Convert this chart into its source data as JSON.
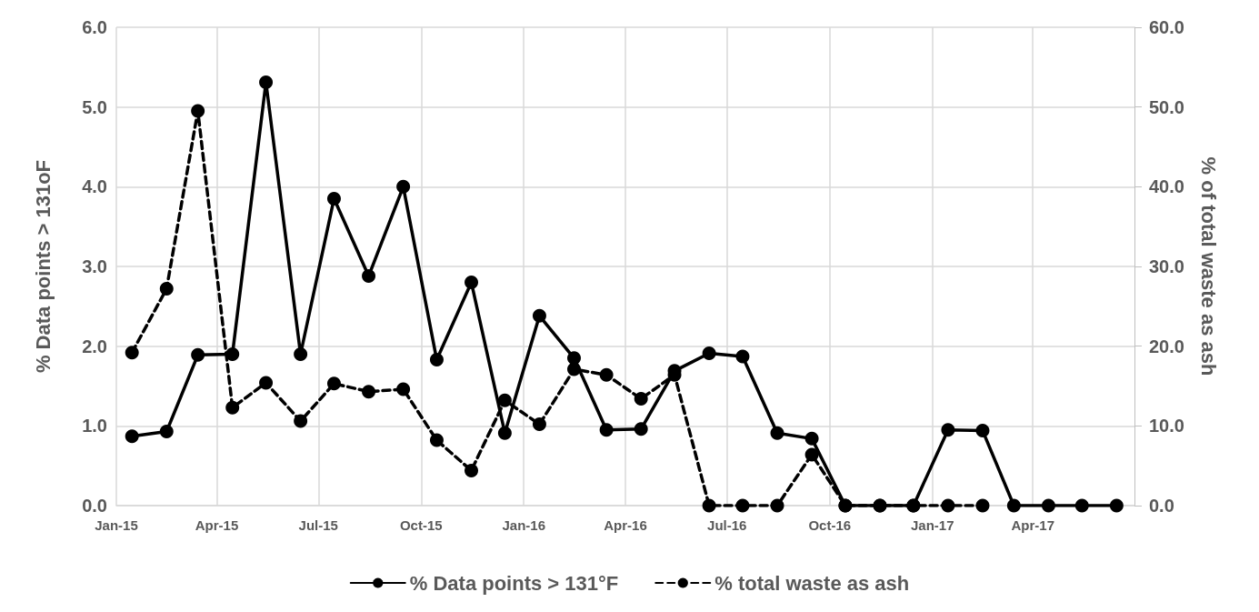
{
  "chart_data": {
    "type": "line",
    "ylabel": "% Data points > 131oF",
    "y2label": "% of total waste as ash",
    "x": [
      "2015-01-15",
      "2015-02-15",
      "2015-03-15",
      "2015-04-15",
      "2015-05-15",
      "2015-06-15",
      "2015-07-15",
      "2015-08-15",
      "2015-09-15",
      "2015-10-15",
      "2015-11-15",
      "2015-12-15",
      "2016-01-15",
      "2016-02-15",
      "2016-03-15",
      "2016-04-15",
      "2016-05-15",
      "2016-06-15",
      "2016-07-15",
      "2016-08-15",
      "2016-09-15",
      "2016-10-15",
      "2016-11-15",
      "2016-12-15",
      "2017-01-15",
      "2017-02-15",
      "2017-03-15",
      "2017-04-15",
      "2017-05-15",
      "2017-06-15"
    ],
    "series": [
      {
        "name": "% Data points > 131°F",
        "color": "#000000",
        "line_style": "solid",
        "values": [
          0.87,
          0.93,
          1.89,
          1.9,
          5.31,
          1.9,
          3.85,
          2.88,
          4.0,
          1.83,
          2.8,
          0.91,
          2.38,
          1.85,
          0.95,
          0.96,
          1.69,
          1.91,
          1.87,
          0.91,
          0.84,
          0,
          0,
          0,
          0.95,
          0.94,
          0,
          0,
          0,
          0
        ]
      },
      {
        "name": "% total waste as ash",
        "color": "#000000",
        "line_style": "dashed",
        "axis": "y2",
        "values": [
          19.2,
          27.2,
          49.5,
          12.3,
          15.4,
          10.6,
          15.3,
          14.3,
          14.6,
          8.2,
          4.4,
          13.2,
          10.2,
          17.1,
          16.4,
          13.4,
          16.4,
          0,
          0,
          0,
          6.4,
          0,
          0,
          0,
          0,
          0,
          null,
          null,
          null,
          null
        ]
      }
    ],
    "xlim": [
      "2015-01-01",
      "2017-07-01"
    ],
    "xticks": [
      {
        "value": "2015-01-01",
        "label": "Jan-15"
      },
      {
        "value": "2015-04-01",
        "label": "Apr-15"
      },
      {
        "value": "2015-07-01",
        "label": "Jul-15"
      },
      {
        "value": "2015-10-01",
        "label": "Oct-15"
      },
      {
        "value": "2016-01-01",
        "label": "Jan-16"
      },
      {
        "value": "2016-04-01",
        "label": "Apr-16"
      },
      {
        "value": "2016-07-01",
        "label": "Jul-16"
      },
      {
        "value": "2016-10-01",
        "label": "Oct-16"
      },
      {
        "value": "2017-01-01",
        "label": "Jan-17"
      },
      {
        "value": "2017-04-01",
        "label": "Apr-17"
      }
    ],
    "ylim": [
      0,
      6
    ],
    "yticks": [
      {
        "value": 0,
        "label": "0.0"
      },
      {
        "value": 1,
        "label": "1.0"
      },
      {
        "value": 2,
        "label": "2.0"
      },
      {
        "value": 3,
        "label": "3.0"
      },
      {
        "value": 4,
        "label": "4.0"
      },
      {
        "value": 5,
        "label": "5.0"
      },
      {
        "value": 6,
        "label": "6.0"
      }
    ],
    "y2lim": [
      0,
      60
    ],
    "y2ticks": [
      {
        "value": 0,
        "label": "0.0"
      },
      {
        "value": 10,
        "label": "10.0"
      },
      {
        "value": 20,
        "label": "20.0"
      },
      {
        "value": 30,
        "label": "30.0"
      },
      {
        "value": 40,
        "label": "40.0"
      },
      {
        "value": 50,
        "label": "50.0"
      },
      {
        "value": 60,
        "label": "60.0"
      }
    ],
    "grid": true,
    "legend": "bottom",
    "marker": "circle"
  }
}
